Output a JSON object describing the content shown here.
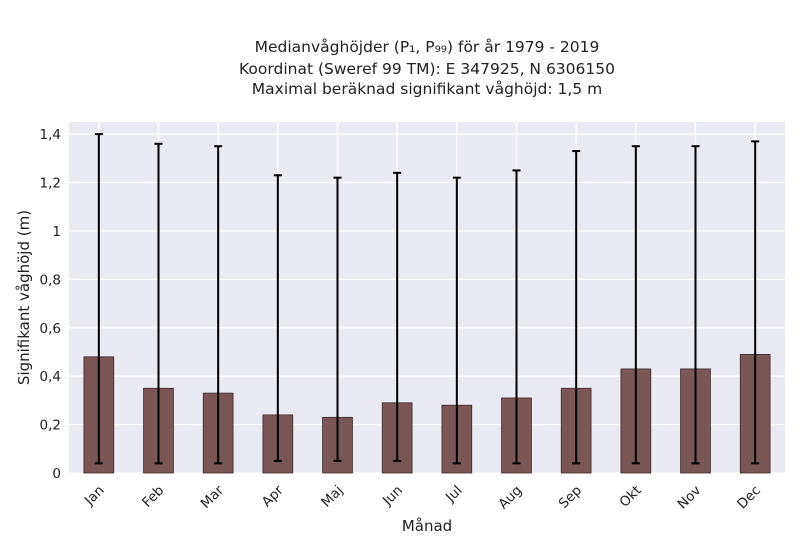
{
  "chart_data": {
    "type": "bar",
    "title_lines": [
      "Medianvåghöjder (P₁, P₉₉) för år 1979 - 2019",
      "Koordinat (Sweref 99 TM): E 347925, N 6306150",
      "Maximal beräknad signifikant våghöjd: 1,5 m"
    ],
    "xlabel": "Månad",
    "ylabel": "Signifikant våghöjd (m)",
    "ylim": [
      0,
      1.45
    ],
    "yticks": [
      0,
      0.2,
      0.4,
      0.6,
      0.8,
      1,
      1.2,
      1.4
    ],
    "ytick_labels": [
      "0",
      "0,2",
      "0,4",
      "0,6",
      "0,8",
      "1",
      "1,2",
      "1,4"
    ],
    "categories": [
      "Jan",
      "Feb",
      "Mar",
      "Apr",
      "Maj",
      "Jun",
      "Jul",
      "Aug",
      "Sep",
      "Okt",
      "Nov",
      "Dec"
    ],
    "values": [
      0.48,
      0.35,
      0.33,
      0.24,
      0.23,
      0.29,
      0.28,
      0.31,
      0.35,
      0.43,
      0.43,
      0.49
    ],
    "error_low": [
      0.04,
      0.04,
      0.04,
      0.05,
      0.05,
      0.05,
      0.04,
      0.04,
      0.04,
      0.04,
      0.04,
      0.04
    ],
    "error_high": [
      1.4,
      1.36,
      1.35,
      1.23,
      1.22,
      1.24,
      1.22,
      1.25,
      1.33,
      1.35,
      1.35,
      1.37
    ],
    "grid": true,
    "colors": {
      "bar": "#7a5656",
      "bar_edge": "#3a2a2a",
      "background": "#eaeaf2",
      "grid": "#ffffff",
      "error": "#000000"
    }
  }
}
